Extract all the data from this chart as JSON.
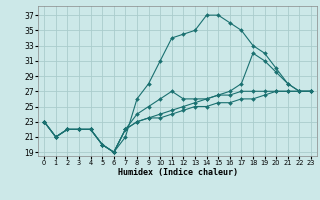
{
  "xlabel": "Humidex (Indice chaleur)",
  "background_color": "#cce8e8",
  "grid_color": "#aacccc",
  "line_color": "#1a7070",
  "x_ticks": [
    0,
    1,
    2,
    3,
    4,
    5,
    6,
    7,
    8,
    9,
    10,
    11,
    12,
    13,
    14,
    15,
    16,
    17,
    18,
    19,
    20,
    21,
    22,
    23
  ],
  "y_ticks": [
    19,
    21,
    23,
    25,
    27,
    29,
    31,
    33,
    35,
    37
  ],
  "xlim": [
    -0.5,
    23.5
  ],
  "ylim": [
    18.5,
    38.2
  ],
  "series": [
    [
      23,
      21,
      22,
      22,
      22,
      20,
      19,
      21,
      26,
      28,
      31,
      34,
      34.5,
      35,
      37,
      37,
      36,
      35,
      33,
      32,
      30,
      28,
      27,
      27
    ],
    [
      23,
      21,
      22,
      22,
      22,
      20,
      19,
      22,
      24,
      25,
      26,
      27,
      26,
      26,
      26,
      26.5,
      27,
      28,
      32,
      31,
      29.5,
      28,
      27,
      27
    ],
    [
      23,
      21,
      22,
      22,
      22,
      20,
      19,
      22,
      23,
      23.5,
      24,
      24.5,
      25,
      25.5,
      26,
      26.5,
      26.5,
      27,
      27,
      27,
      27,
      27,
      27,
      27
    ],
    [
      23,
      21,
      22,
      22,
      22,
      20,
      19,
      22,
      23,
      23.5,
      23.5,
      24,
      24.5,
      25,
      25,
      25.5,
      25.5,
      26,
      26,
      26.5,
      27,
      27,
      27,
      27
    ]
  ]
}
